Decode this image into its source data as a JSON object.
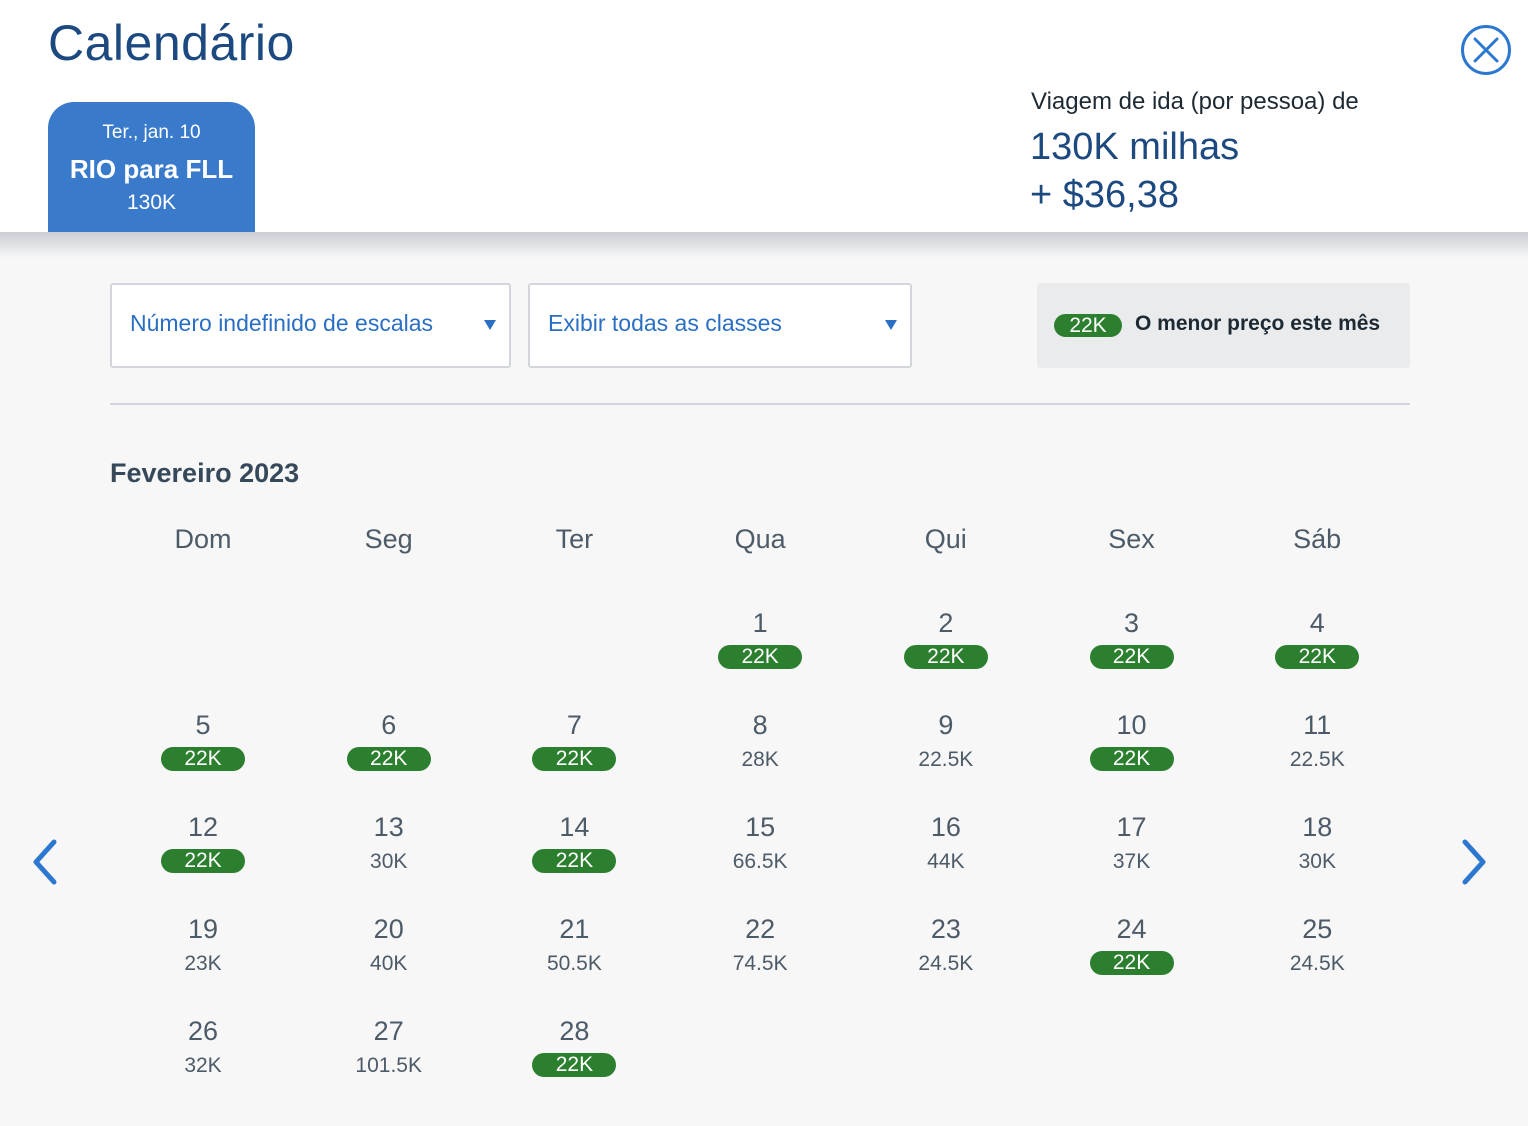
{
  "header": {
    "title": "Calendário",
    "close_icon": "close-icon"
  },
  "flight_tab": {
    "date": "Ter., jan. 10",
    "route": "RIO para FLL",
    "price": "130K"
  },
  "trip": {
    "label": "Viagem de ida (por pessoa) de",
    "miles": "130K milhas",
    "fee": "+ $36,38"
  },
  "filters": {
    "stops": "Número indefinido de escalas",
    "classes": "Exibir todas as classes"
  },
  "legend": {
    "badge": "22K",
    "text": "O menor preço este mês"
  },
  "calendar": {
    "month": "Fevereiro 2023",
    "weekdays": [
      "Dom",
      "Seg",
      "Ter",
      "Qua",
      "Qui",
      "Sex",
      "Sáb"
    ],
    "first_weekday_index": 3,
    "days": [
      {
        "num": "1",
        "price": "22K",
        "lowest": true
      },
      {
        "num": "2",
        "price": "22K",
        "lowest": true
      },
      {
        "num": "3",
        "price": "22K",
        "lowest": true
      },
      {
        "num": "4",
        "price": "22K",
        "lowest": true
      },
      {
        "num": "5",
        "price": "22K",
        "lowest": true
      },
      {
        "num": "6",
        "price": "22K",
        "lowest": true
      },
      {
        "num": "7",
        "price": "22K",
        "lowest": true
      },
      {
        "num": "8",
        "price": "28K",
        "lowest": false
      },
      {
        "num": "9",
        "price": "22.5K",
        "lowest": false
      },
      {
        "num": "10",
        "price": "22K",
        "lowest": true
      },
      {
        "num": "11",
        "price": "22.5K",
        "lowest": false
      },
      {
        "num": "12",
        "price": "22K",
        "lowest": true
      },
      {
        "num": "13",
        "price": "30K",
        "lowest": false
      },
      {
        "num": "14",
        "price": "22K",
        "lowest": true
      },
      {
        "num": "15",
        "price": "66.5K",
        "lowest": false
      },
      {
        "num": "16",
        "price": "44K",
        "lowest": false
      },
      {
        "num": "17",
        "price": "37K",
        "lowest": false
      },
      {
        "num": "18",
        "price": "30K",
        "lowest": false
      },
      {
        "num": "19",
        "price": "23K",
        "lowest": false
      },
      {
        "num": "20",
        "price": "40K",
        "lowest": false
      },
      {
        "num": "21",
        "price": "50.5K",
        "lowest": false
      },
      {
        "num": "22",
        "price": "74.5K",
        "lowest": false
      },
      {
        "num": "23",
        "price": "24.5K",
        "lowest": false
      },
      {
        "num": "24",
        "price": "22K",
        "lowest": true
      },
      {
        "num": "25",
        "price": "24.5K",
        "lowest": false
      },
      {
        "num": "26",
        "price": "32K",
        "lowest": false
      },
      {
        "num": "27",
        "price": "101.5K",
        "lowest": false
      },
      {
        "num": "28",
        "price": "22K",
        "lowest": true
      }
    ]
  },
  "colors": {
    "accent": "#3a7acb",
    "title": "#1c4980",
    "lowest_badge": "#2c7f2f"
  },
  "icons": {
    "prev": "chevron-left-icon",
    "next": "chevron-right-icon",
    "dropdown": "caret-down-icon"
  }
}
